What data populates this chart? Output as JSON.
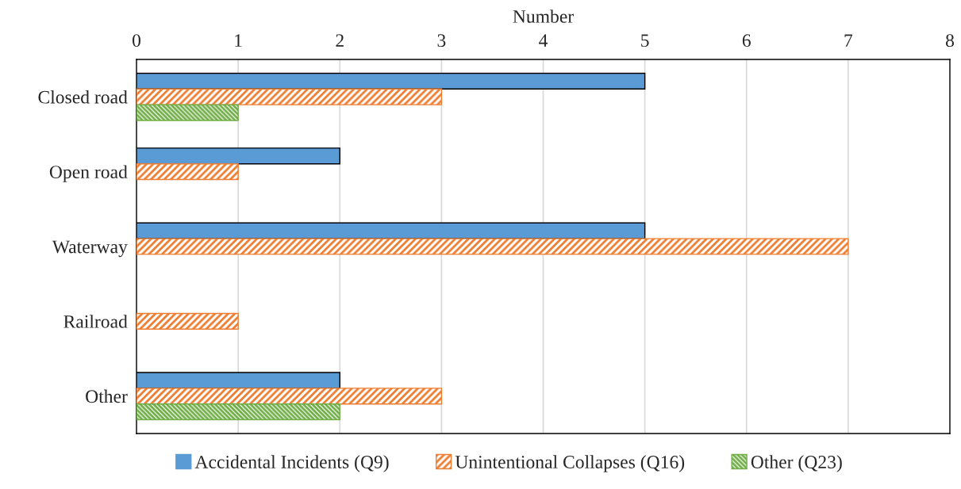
{
  "chart_data": {
    "type": "bar",
    "orientation": "horizontal",
    "xlabel": "Number",
    "categories": [
      "Closed road",
      "Open road",
      "Waterway",
      "Railroad",
      "Other"
    ],
    "series": [
      {
        "name": "Accidental Incidents (Q9)",
        "color": "#5b9bd5",
        "values": [
          5,
          2,
          5,
          null,
          2
        ]
      },
      {
        "name": "Unintentional Collapses (Q16)",
        "color": "#ed7d31",
        "values": [
          3,
          1,
          7,
          1,
          3
        ]
      },
      {
        "name": "Other (Q23)",
        "color": "#70ad47",
        "values": [
          1,
          null,
          null,
          null,
          2
        ]
      }
    ],
    "xlim": [
      0,
      8
    ],
    "xticks": [
      0,
      1,
      2,
      3,
      4,
      5,
      6,
      7,
      8
    ],
    "grid": "x",
    "legend": "bottom"
  }
}
